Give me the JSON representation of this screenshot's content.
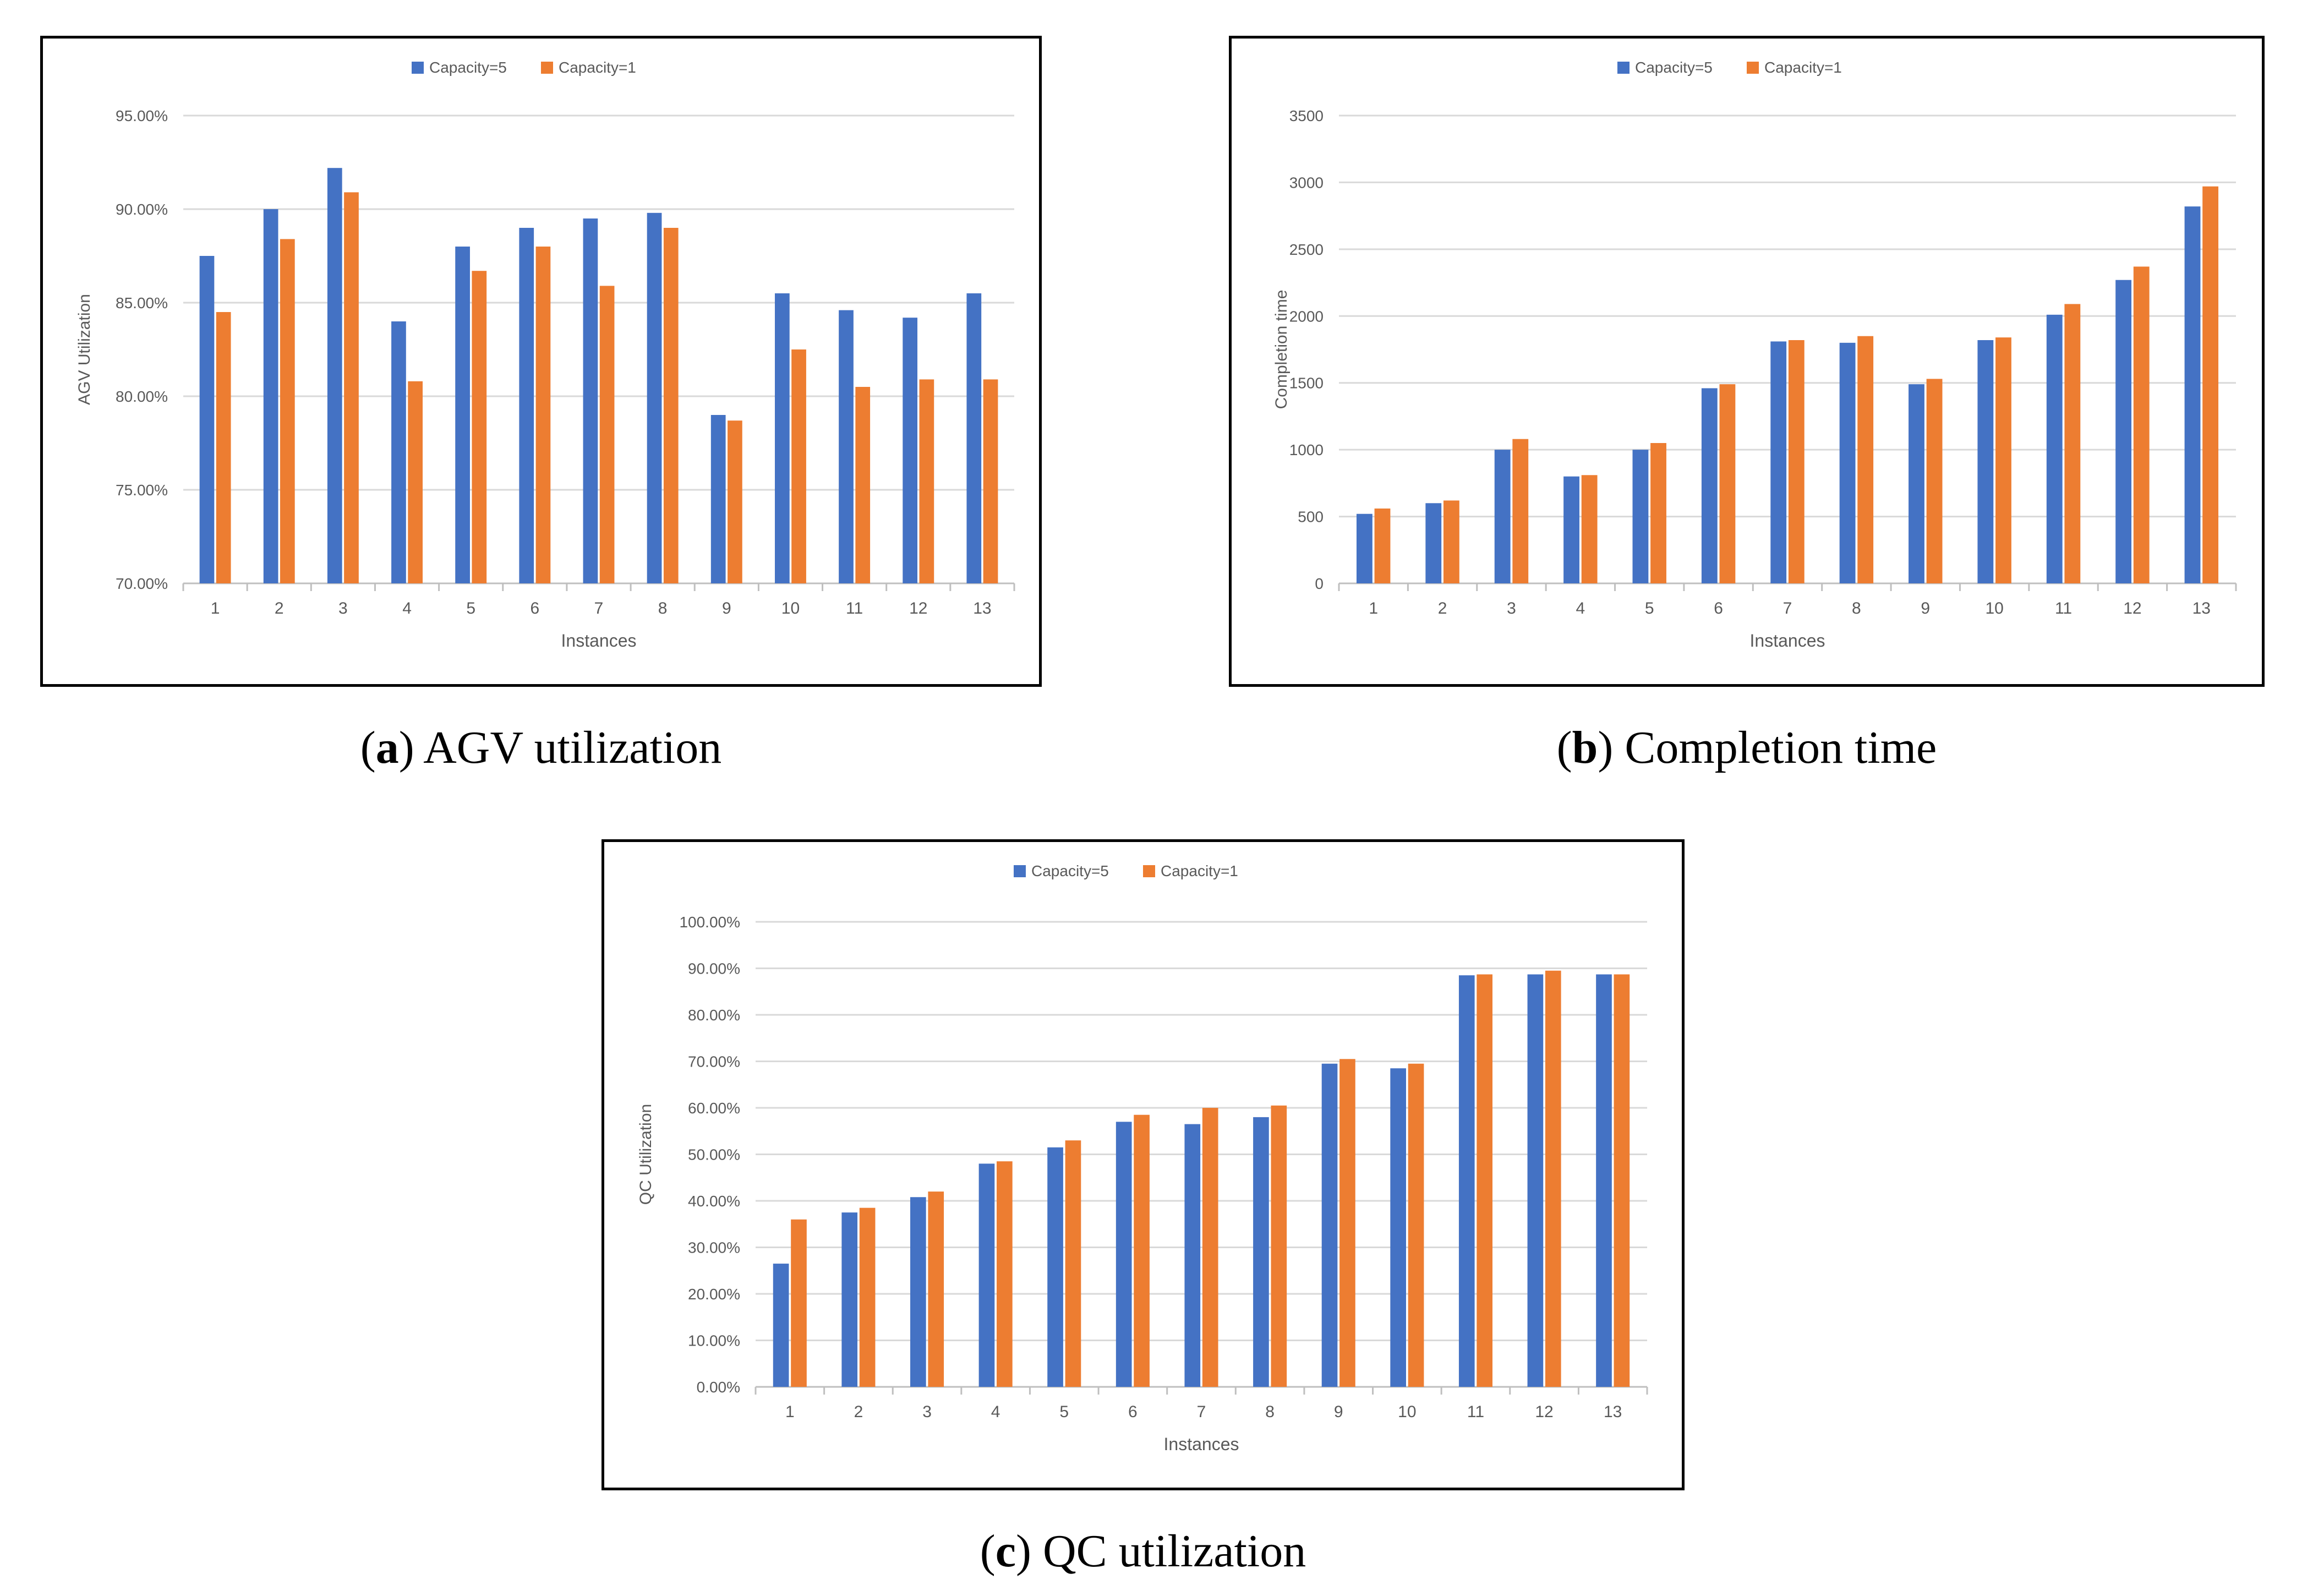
{
  "colors": {
    "capacity5": "#4472C4",
    "capacity1": "#ED7D31",
    "grid": "#D9D9D9",
    "text": "#595959"
  },
  "charts": [
    {
      "id": "a",
      "caption_letter": "a",
      "caption_text": "AGV utilization",
      "chart_data": {
        "type": "bar",
        "title": "",
        "xlabel": "Instances",
        "ylabel": "AGV Utilization",
        "categories": [
          "1",
          "2",
          "3",
          "4",
          "5",
          "6",
          "7",
          "8",
          "9",
          "10",
          "11",
          "12",
          "13"
        ],
        "series": [
          {
            "name": "Capacity=5",
            "values": [
              87.5,
              90.0,
              92.2,
              84.0,
              88.0,
              89.0,
              89.5,
              89.8,
              79.0,
              85.5,
              84.6,
              84.2,
              85.5
            ]
          },
          {
            "name": "Capacity=1",
            "values": [
              84.5,
              88.4,
              90.9,
              80.8,
              86.7,
              88.0,
              85.9,
              89.0,
              78.7,
              82.5,
              80.5,
              80.9,
              80.9
            ]
          }
        ],
        "ylim": [
          70,
          95
        ],
        "yticks": [
          70,
          75,
          80,
          85,
          90,
          95
        ],
        "ytick_labels": [
          "70.00%",
          "75.00%",
          "80.00%",
          "85.00%",
          "90.00%",
          "95.00%"
        ],
        "legend": "top-center",
        "grid": true
      }
    },
    {
      "id": "b",
      "caption_letter": "b",
      "caption_text": "Completion time",
      "chart_data": {
        "type": "bar",
        "title": "",
        "xlabel": "Instances",
        "ylabel": "Completion time",
        "categories": [
          "1",
          "2",
          "3",
          "4",
          "5",
          "6",
          "7",
          "8",
          "9",
          "10",
          "11",
          "12",
          "13"
        ],
        "series": [
          {
            "name": "Capacity=5",
            "values": [
              520,
              600,
              1000,
              800,
              1000,
              1460,
              1810,
              1800,
              1490,
              1820,
              2010,
              2270,
              2820
            ]
          },
          {
            "name": "Capacity=1",
            "values": [
              560,
              620,
              1080,
              810,
              1050,
              1490,
              1820,
              1850,
              1530,
              1840,
              2090,
              2370,
              2970
            ]
          }
        ],
        "ylim": [
          0,
          3500
        ],
        "yticks": [
          0,
          500,
          1000,
          1500,
          2000,
          2500,
          3000,
          3500
        ],
        "ytick_labels": [
          "0",
          "500",
          "1000",
          "1500",
          "2000",
          "2500",
          "3000",
          "3500"
        ],
        "legend": "top-center",
        "grid": true
      }
    },
    {
      "id": "c",
      "caption_letter": "c",
      "caption_text": "QC utilization",
      "chart_data": {
        "type": "bar",
        "title": "",
        "xlabel": "Instances",
        "ylabel": "QC Utilization",
        "categories": [
          "1",
          "2",
          "3",
          "4",
          "5",
          "6",
          "7",
          "8",
          "9",
          "10",
          "11",
          "12",
          "13"
        ],
        "series": [
          {
            "name": "Capacity=5",
            "values": [
              26.5,
              37.5,
              40.8,
              48.0,
              51.5,
              57.0,
              56.5,
              58.0,
              69.5,
              68.5,
              88.5,
              88.7,
              88.7
            ]
          },
          {
            "name": "Capacity=1",
            "values": [
              36.0,
              38.5,
              42.0,
              48.5,
              53.0,
              58.5,
              60.0,
              60.5,
              70.5,
              69.5,
              88.7,
              89.5,
              88.7
            ]
          }
        ],
        "ylim": [
          0,
          100
        ],
        "yticks": [
          0,
          10,
          20,
          30,
          40,
          50,
          60,
          70,
          80,
          90,
          100
        ],
        "ytick_labels": [
          "0.00%",
          "10.00%",
          "20.00%",
          "30.00%",
          "40.00%",
          "50.00%",
          "60.00%",
          "70.00%",
          "80.00%",
          "90.00%",
          "100.00%"
        ],
        "legend": "top-center",
        "grid": true
      }
    }
  ]
}
